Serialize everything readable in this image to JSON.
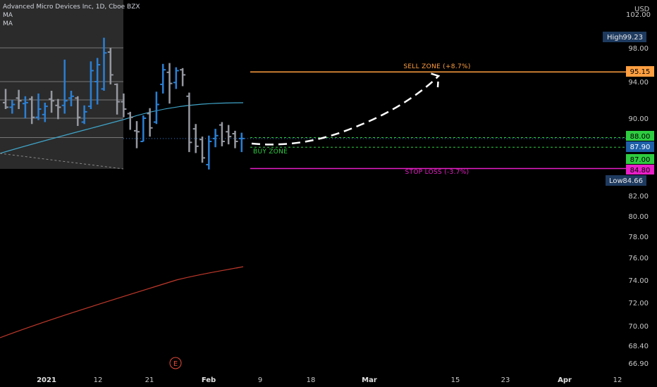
{
  "header": {
    "symbol": "Advanced Micro Devices Inc, 1D, Cboe BZX",
    "indicator_1": "MA",
    "indicator_2": "MA"
  },
  "currency": "USD",
  "zones": {
    "sell": "SELL ZONE (+8.7%)",
    "buy": "BUY ZONE",
    "stop": "STOP LOSS (-3.7%)"
  },
  "earnings_marker": "E",
  "price_tags": {
    "high_label": "High",
    "high_value": "99.23",
    "low_label": "Low",
    "low_value": "84.66",
    "sell_value": "95.15",
    "buy_upper": "88.00",
    "last_value": "87.90",
    "buy_lower": "87.00",
    "stop_value": "84.80"
  },
  "colors": {
    "up_bar": "#2a7fd4",
    "down_bar": "#9598a1",
    "sell_line": "#ff9f40",
    "stop_line": "#e91ec8",
    "buy_line": "#2ecc40",
    "ma_fast": "#3fa4c8",
    "ma_slow": "#c0392b",
    "high_low_tag": "#1e3a5f"
  },
  "chart_data": {
    "type": "candlestick-ohlc",
    "title": "Advanced Micro Devices Inc, 1D, Cboe BZX",
    "y_axis_ticks": [
      102.0,
      98.0,
      94.0,
      90.0,
      82.0,
      80.0,
      78.0,
      76.0,
      74.0,
      72.0,
      70.0,
      68.4,
      66.9
    ],
    "x_axis_ticks": [
      "2021",
      "12",
      "21",
      "Feb",
      "9",
      "18",
      "Mar",
      "15",
      "23",
      "Apr",
      "12"
    ],
    "ylim": [
      66.0,
      103.0
    ],
    "bars": [
      {
        "date": "2020-12-28",
        "o": 91.7,
        "h": 93.2,
        "l": 91.0,
        "c": 91.2
      },
      {
        "date": "2020-12-29",
        "o": 91.2,
        "h": 92.0,
        "l": 90.5,
        "c": 91.5
      },
      {
        "date": "2020-12-30",
        "o": 92.2,
        "h": 93.1,
        "l": 91.0,
        "c": 91.9
      },
      {
        "date": "2020-12-31",
        "o": 91.6,
        "h": 92.4,
        "l": 90.0,
        "c": 91.7
      },
      {
        "date": "2021-01-04",
        "o": 92.1,
        "h": 92.4,
        "l": 89.4,
        "c": 90.1
      },
      {
        "date": "2021-01-05",
        "o": 90.1,
        "h": 92.7,
        "l": 89.8,
        "c": 91.0
      },
      {
        "date": "2021-01-06",
        "o": 90.4,
        "h": 91.7,
        "l": 89.6,
        "c": 91.3
      },
      {
        "date": "2021-01-07",
        "o": 92.1,
        "h": 93.0,
        "l": 90.6,
        "c": 91.9
      },
      {
        "date": "2021-01-08",
        "o": 91.4,
        "h": 92.1,
        "l": 89.9,
        "c": 91.2
      },
      {
        "date": "2021-01-11",
        "o": 91.4,
        "h": 96.6,
        "l": 90.5,
        "c": 91.9
      },
      {
        "date": "2021-01-12",
        "o": 92.2,
        "h": 93.0,
        "l": 91.3,
        "c": 92.4
      },
      {
        "date": "2021-01-13",
        "o": 92.2,
        "h": 92.4,
        "l": 89.2,
        "c": 90.1
      },
      {
        "date": "2021-01-14",
        "o": 89.6,
        "h": 91.4,
        "l": 89.4,
        "c": 90.7
      },
      {
        "date": "2021-01-15",
        "o": 91.3,
        "h": 96.4,
        "l": 91.0,
        "c": 95.3
      },
      {
        "date": "2021-01-19",
        "o": 94.0,
        "h": 96.8,
        "l": 91.5,
        "c": 96.0
      },
      {
        "date": "2021-01-20",
        "o": 93.2,
        "h": 99.2,
        "l": 93.0,
        "c": 97.4
      },
      {
        "date": "2021-01-21",
        "o": 97.5,
        "h": 98.0,
        "l": 93.7,
        "c": 94.8
      },
      {
        "date": "2021-01-22",
        "o": 93.7,
        "h": 93.8,
        "l": 90.4,
        "c": 91.8
      },
      {
        "date": "2021-01-25",
        "o": 91.8,
        "h": 92.7,
        "l": 90.1,
        "c": 91.0
      },
      {
        "date": "2021-01-26",
        "o": 90.5,
        "h": 90.7,
        "l": 88.8,
        "c": 90.1
      },
      {
        "date": "2021-01-27",
        "o": 88.7,
        "h": 89.7,
        "l": 86.9,
        "c": 88.6
      },
      {
        "date": "2021-01-28",
        "o": 87.6,
        "h": 90.3,
        "l": 87.6,
        "c": 90.0
      },
      {
        "date": "2021-01-29",
        "o": 90.5,
        "h": 91.1,
        "l": 88.1,
        "c": 89.0
      },
      {
        "date": "2021-02-01",
        "o": 89.6,
        "h": 92.9,
        "l": 89.4,
        "c": 91.5
      },
      {
        "date": "2021-02-02",
        "o": 93.7,
        "h": 96.1,
        "l": 92.7,
        "c": 95.4
      },
      {
        "date": "2021-02-03",
        "o": 95.1,
        "h": 96.2,
        "l": 91.6,
        "c": 93.8
      },
      {
        "date": "2021-02-04",
        "o": 93.9,
        "h": 95.7,
        "l": 93.2,
        "c": 95.3
      },
      {
        "date": "2021-02-05",
        "o": 95.4,
        "h": 95.6,
        "l": 93.5,
        "c": 94.8
      },
      {
        "date": "2021-02-08",
        "o": 92.4,
        "h": 92.8,
        "l": 86.5,
        "c": 87.5
      },
      {
        "date": "2021-02-09",
        "o": 88.9,
        "h": 89.4,
        "l": 86.4,
        "c": 87.1
      },
      {
        "date": "2021-02-10",
        "o": 87.8,
        "h": 88.1,
        "l": 85.4,
        "c": 85.9
      },
      {
        "date": "2021-02-11",
        "o": 85.2,
        "h": 88.2,
        "l": 84.7,
        "c": 87.6
      },
      {
        "date": "2021-02-12",
        "o": 87.9,
        "h": 88.9,
        "l": 87.0,
        "c": 88.2
      },
      {
        "date": "2021-02-16",
        "o": 89.3,
        "h": 89.6,
        "l": 87.1,
        "c": 87.6
      },
      {
        "date": "2021-02-17",
        "o": 88.6,
        "h": 89.3,
        "l": 87.3,
        "c": 88.1
      },
      {
        "date": "2021-02-18",
        "o": 88.4,
        "h": 88.7,
        "l": 86.9,
        "c": 87.6
      },
      {
        "date": "2021-02-19",
        "o": 87.9,
        "h": 88.5,
        "l": 86.5,
        "c": 87.9
      }
    ],
    "levels": {
      "sell_zone": 95.15,
      "buy_zone_upper": 88.0,
      "buy_zone_lower": 87.0,
      "last_price": 87.9,
      "stop_loss": 84.8,
      "high": 99.23,
      "low": 84.66
    }
  }
}
